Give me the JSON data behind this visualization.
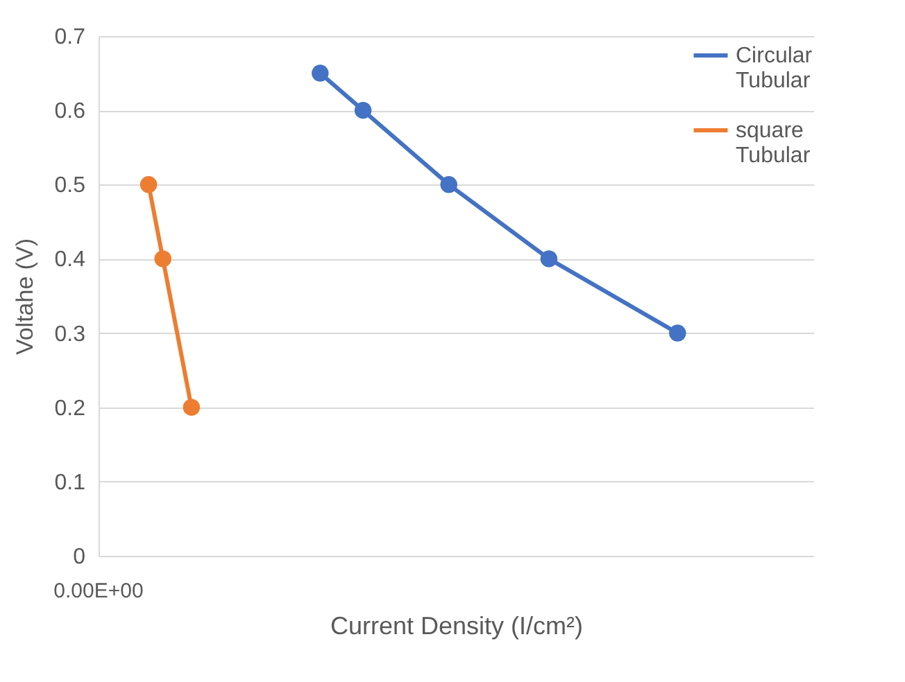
{
  "chart_data": {
    "type": "line",
    "xlabel": "Current Density (I/cm²)",
    "ylabel": "Voltahe (V)",
    "annotations": [
      "0.00E+00"
    ],
    "categories": [
      null,
      null,
      null,
      null,
      null,
      null,
      null,
      null,
      null,
      null,
      null,
      null,
      null,
      null,
      null,
      null,
      null,
      null,
      null,
      null,
      null,
      null,
      null,
      null,
      null,
      null,
      null,
      null,
      null,
      null,
      null,
      null,
      null,
      null,
      null,
      null,
      null,
      null,
      null,
      null,
      null,
      null,
      null,
      null,
      null,
      null,
      null,
      null,
      null,
      null
    ],
    "ylim": [
      0,
      0.7
    ],
    "yticks": [
      0,
      0.1,
      0.2,
      0.3,
      0.4,
      0.5,
      0.6,
      0.7
    ],
    "grid": "y",
    "legend": "top right",
    "marker": "circle",
    "line_style": "solid",
    "series": [
      {
        "name": "Circular Tubular",
        "color": "#4472c4",
        "values": [
          null,
          null,
          null,
          null,
          null,
          null,
          null,
          null,
          null,
          null,
          null,
          null,
          null,
          null,
          null,
          0.65,
          null,
          null,
          0.6,
          null,
          null,
          null,
          null,
          null,
          0.5,
          null,
          null,
          null,
          null,
          null,
          null,
          0.4,
          null,
          null,
          null,
          null,
          null,
          null,
          null,
          null,
          0.3,
          null,
          null,
          null,
          null,
          null,
          null,
          null,
          null,
          null
        ]
      },
      {
        "name": "square Tubular",
        "color": "#ed7d31",
        "values": [
          null,
          null,
          null,
          0.5,
          0.4,
          null,
          0.2,
          null,
          null,
          null,
          null,
          null,
          null,
          null,
          null,
          null,
          null,
          null,
          null,
          null,
          null,
          null,
          null,
          null,
          null,
          null,
          null,
          null,
          null,
          null,
          null,
          null,
          null,
          null,
          null,
          null,
          null,
          null,
          null,
          null,
          null,
          null,
          null,
          null,
          null,
          null,
          null,
          null,
          null,
          null
        ]
      }
    ]
  }
}
